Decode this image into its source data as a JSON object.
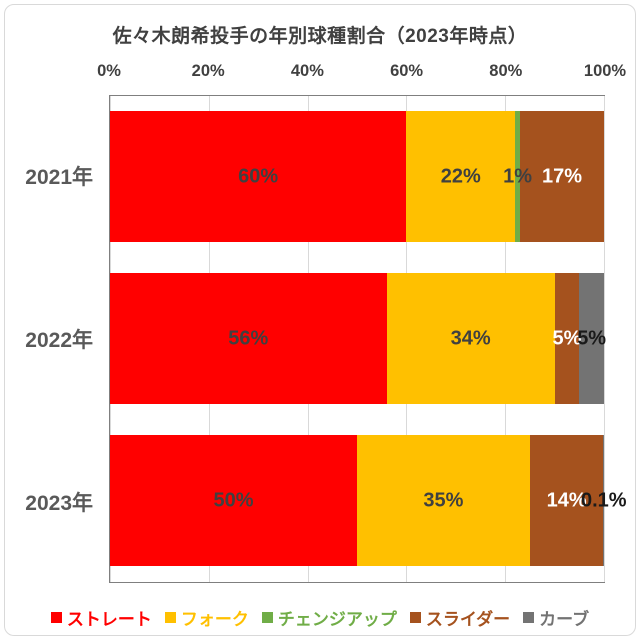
{
  "title": "佐々木朗希投手の年別球種割合（2023年時点）",
  "colors": {
    "red": "#FF0000",
    "gold": "#FFC000",
    "green": "#70AD47",
    "brown": "#A5521E",
    "gray": "#737373",
    "dark_label": "#404040",
    "black_label": "#1A1A1A",
    "light_label": "#FFFFFF",
    "gridline": "#D9D9D9",
    "plot_border": "#7F7F7F",
    "title_text": "#404040",
    "year_text": "#595959",
    "chart_border": "#D9D9D9"
  },
  "x_axis": {
    "ticks": [
      "0%",
      "20%",
      "40%",
      "60%",
      "80%",
      "100%"
    ]
  },
  "legend": [
    {
      "label": "ストレート",
      "fill": "red"
    },
    {
      "label": "フォーク",
      "fill": "gold"
    },
    {
      "label": "チェンジアップ",
      "fill": "green"
    },
    {
      "label": "スライダー",
      "fill": "brown"
    },
    {
      "label": "カーブ",
      "fill": "gray"
    }
  ],
  "chart_data": {
    "type": "bar",
    "stacked": true,
    "orientation": "horizontal",
    "unit": "%",
    "x_range": [
      0,
      100
    ],
    "gridlines": true,
    "legend_position": "bottom",
    "title": "佐々木朗希投手の年別球種割合（2023年時点）",
    "categories": [
      "2021年",
      "2022年",
      "2023年"
    ],
    "series": [
      {
        "name": "ストレート",
        "color": "#FF0000",
        "values": [
          60,
          56,
          50
        ]
      },
      {
        "name": "フォーク",
        "color": "#FFC000",
        "values": [
          22,
          34,
          35
        ]
      },
      {
        "name": "チェンジアップ",
        "color": "#70AD47",
        "values": [
          1,
          0,
          0
        ]
      },
      {
        "name": "スライダー",
        "color": "#A5521E",
        "values": [
          17,
          5,
          14
        ]
      },
      {
        "name": "カーブ",
        "color": "#737373",
        "values": [
          0,
          5,
          0.1
        ]
      }
    ],
    "rows": [
      {
        "category": "2021年",
        "segments": [
          {
            "series": "ストレート",
            "value": 60,
            "width": 60,
            "label": "60%",
            "fill": "red",
            "text": "dark"
          },
          {
            "series": "フォーク",
            "value": 22,
            "width": 22,
            "label": "22%",
            "fill": "gold",
            "text": "dark"
          },
          {
            "series": "チェンジアップ",
            "value": 1,
            "width": 1,
            "label": "1%",
            "fill": "green",
            "text": "dark"
          },
          {
            "series": "スライダー",
            "value": 17,
            "width": 17,
            "label": "17%",
            "fill": "brown",
            "text": "light"
          }
        ]
      },
      {
        "category": "2022年",
        "segments": [
          {
            "series": "ストレート",
            "value": 56,
            "width": 56,
            "label": "56%",
            "fill": "red",
            "text": "dark"
          },
          {
            "series": "フォーク",
            "value": 34,
            "width": 34,
            "label": "34%",
            "fill": "gold",
            "text": "dark"
          },
          {
            "series": "スライダー",
            "value": 5,
            "width": 5,
            "label": "5%",
            "fill": "brown",
            "text": "light"
          },
          {
            "series": "カーブ",
            "value": 5,
            "width": 5,
            "label": "5%",
            "fill": "gray",
            "text": "black"
          }
        ]
      },
      {
        "category": "2023年",
        "segments": [
          {
            "series": "ストレート",
            "value": 50,
            "width": 50,
            "label": "50%",
            "fill": "red",
            "text": "dark"
          },
          {
            "series": "フォーク",
            "value": 35,
            "width": 35,
            "label": "35%",
            "fill": "gold",
            "text": "dark"
          },
          {
            "series": "スライダー",
            "value": 14,
            "width": 14.9,
            "label": "14%",
            "fill": "brown",
            "text": "light"
          },
          {
            "series": "カーブ",
            "value": 0.1,
            "width": 0.1,
            "label": "0.1%",
            "fill": "gray",
            "text": "black"
          }
        ]
      }
    ]
  }
}
